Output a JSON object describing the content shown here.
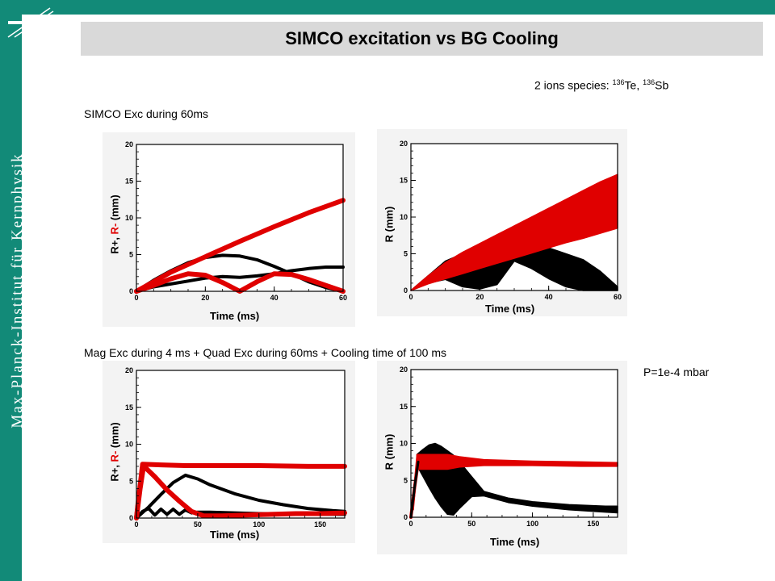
{
  "slide": {
    "title": "SIMCO excitation vs BG Cooling",
    "sidebar_text": "Max-Planck-Institut für Kernphysik",
    "species_prefix": "2 ions species: ",
    "species_sup1": "136",
    "species_el1": "Te",
    "species_sep": ", ",
    "species_sup2": "136",
    "species_el2": "Sb",
    "section1": "SIMCO Exc during 60ms",
    "section2": "Mag Exc during 4 ms + Quad Exc during 60ms + Cooling time of 100 ms",
    "pressure": "P=1e-4 mbar",
    "logo": "max-planck-logo"
  },
  "colors": {
    "accent": "#128a78",
    "series_black": "#000000",
    "series_red": "#e00000",
    "titlebar": "#d9d9d9"
  },
  "chart_data": [
    {
      "type": "line",
      "xlabel": "Time (ms)",
      "ylabel_parts": [
        "R+, ",
        "R-",
        " (mm)"
      ],
      "xlim": [
        0,
        60
      ],
      "ylim": [
        0,
        20
      ],
      "xticks": [
        0,
        20,
        40,
        60
      ],
      "yticks": [
        0,
        5,
        10,
        15,
        20
      ],
      "series": [
        {
          "color": "#000000",
          "width": 4,
          "x": [
            0,
            5,
            10,
            15,
            20,
            25,
            30,
            35,
            40,
            45,
            50,
            55,
            60
          ],
          "y": [
            0,
            1.5,
            2.8,
            3.9,
            4.6,
            4.9,
            4.8,
            4.3,
            3.4,
            2.4,
            1.3,
            0.5,
            0
          ]
        },
        {
          "color": "#000000",
          "width": 4,
          "x": [
            0,
            5,
            10,
            15,
            20,
            25,
            30,
            35,
            40,
            45,
            50,
            55,
            60
          ],
          "y": [
            0,
            0.6,
            1.0,
            1.4,
            1.8,
            2.0,
            1.9,
            2.1,
            2.4,
            2.8,
            3.1,
            3.3,
            3.3
          ]
        },
        {
          "color": "#e00000",
          "width": 6,
          "x": [
            0,
            10,
            20,
            30,
            40,
            50,
            60
          ],
          "y": [
            0,
            2.6,
            4.7,
            6.8,
            8.8,
            10.7,
            12.4
          ]
        },
        {
          "color": "#e00000",
          "width": 6,
          "x": [
            0,
            5,
            10,
            15,
            20,
            25,
            30,
            35,
            40,
            45,
            50,
            55,
            60
          ],
          "y": [
            0,
            0.8,
            1.7,
            2.4,
            2.2,
            1.2,
            0,
            1.3,
            2.4,
            2.3,
            1.6,
            0.8,
            0
          ]
        }
      ]
    },
    {
      "type": "line",
      "xlabel": "Time (ms)",
      "ylabel_parts": [
        "R (mm)",
        "",
        ""
      ],
      "xlim": [
        0,
        60
      ],
      "ylim": [
        0,
        20
      ],
      "xticks": [
        0,
        20,
        40,
        60
      ],
      "yticks": [
        0,
        5,
        10,
        15,
        20
      ],
      "bands": [
        {
          "color": "#000000",
          "x": [
            0,
            5,
            10,
            15,
            20,
            25,
            30,
            35,
            40,
            45,
            50,
            55,
            60
          ],
          "upper": [
            0,
            2,
            4,
            5,
            5.2,
            4.8,
            4.5,
            5.5,
            5.8,
            5.0,
            4.2,
            2.6,
            0.5
          ],
          "lower": [
            0,
            1.0,
            1.5,
            0.5,
            0.2,
            0.8,
            4.0,
            3.0,
            1.6,
            0.5,
            0,
            0,
            0
          ]
        },
        {
          "color": "#e00000",
          "x": [
            0,
            5,
            10,
            15,
            20,
            25,
            30,
            35,
            40,
            45,
            50,
            55,
            60
          ],
          "upper": [
            0,
            2.0,
            3.8,
            5.2,
            6.4,
            7.6,
            8.8,
            10,
            11.2,
            12.4,
            13.6,
            14.8,
            15.8
          ],
          "lower": [
            0,
            0.9,
            1.6,
            2.3,
            3.0,
            3.7,
            4.4,
            5.1,
            5.8,
            6.5,
            7.1,
            7.8,
            8.5
          ]
        }
      ]
    },
    {
      "type": "line",
      "xlabel": "Time (ms)",
      "ylabel_parts": [
        "R+, ",
        "R-",
        " (mm)"
      ],
      "xlim": [
        0,
        170
      ],
      "ylim": [
        0,
        20
      ],
      "xticks": [
        0,
        50,
        100,
        150
      ],
      "yticks": [
        0,
        5,
        10,
        15,
        20
      ],
      "series": [
        {
          "color": "#000000",
          "width": 4,
          "x": [
            0,
            10,
            20,
            30,
            40,
            50,
            60,
            80,
            100,
            120,
            140,
            160,
            170
          ],
          "y": [
            0,
            1.5,
            3.2,
            4.8,
            5.8,
            5.3,
            4.5,
            3.3,
            2.4,
            1.8,
            1.3,
            1.0,
            0.9
          ]
        },
        {
          "color": "#000000",
          "width": 4,
          "x": [
            0,
            5,
            10,
            15,
            20,
            25,
            30,
            35,
            40,
            45,
            50,
            60,
            80,
            100,
            130,
            170
          ],
          "y": [
            0,
            0.9,
            1.3,
            0.4,
            1.2,
            0.5,
            1.2,
            0.5,
            1.1,
            0.7,
            0.8,
            0.8,
            0.7,
            0.6,
            0.5,
            0.5
          ]
        },
        {
          "color": "#e00000",
          "width": 6,
          "x": [
            0,
            2,
            5,
            20,
            40,
            60,
            100,
            140,
            170
          ],
          "y": [
            0,
            3,
            7.3,
            7.2,
            7.1,
            7.1,
            7.1,
            7.0,
            7.0
          ]
        },
        {
          "color": "#e00000",
          "width": 6,
          "x": [
            5,
            15,
            25,
            35,
            45,
            55,
            70,
            90,
            110,
            130,
            150,
            170
          ],
          "y": [
            7.2,
            5.6,
            3.8,
            2.3,
            0.9,
            0.3,
            0.3,
            0.4,
            0.5,
            0.6,
            0.6,
            0.7
          ]
        },
        {
          "color": "#e00000",
          "width": 6,
          "x": [
            0,
            3,
            6
          ],
          "y": [
            0,
            4,
            7.2
          ]
        }
      ]
    },
    {
      "type": "line",
      "xlabel": "Time (ms)",
      "ylabel_parts": [
        "R (mm)",
        "",
        ""
      ],
      "xlim": [
        0,
        170
      ],
      "ylim": [
        0,
        20
      ],
      "xticks": [
        0,
        50,
        100,
        150
      ],
      "yticks": [
        0,
        5,
        10,
        15,
        20
      ],
      "bands": [
        {
          "color": "#000000",
          "x": [
            5,
            10,
            15,
            20,
            25,
            30,
            35,
            40,
            50,
            60,
            80,
            100,
            130,
            160,
            170
          ],
          "upper": [
            8.5,
            9.2,
            9.8,
            10,
            9.6,
            9.0,
            8.4,
            7.5,
            5.5,
            3.5,
            2.6,
            2.1,
            1.7,
            1.5,
            1.5
          ],
          "lower": [
            7.0,
            5.5,
            4.0,
            2.6,
            1.4,
            0.4,
            0.3,
            1.2,
            2.8,
            2.9,
            2.0,
            1.5,
            1.0,
            0.7,
            0.6
          ]
        },
        {
          "color": "#e00000",
          "x": [
            2,
            5,
            10,
            20,
            30,
            40,
            60,
            100,
            140,
            170
          ],
          "upper": [
            3,
            8.5,
            8.5,
            8.5,
            8.5,
            8.2,
            7.8,
            7.6,
            7.5,
            7.4
          ],
          "lower": [
            1,
            6.5,
            6.5,
            6.5,
            6.5,
            6.8,
            7.0,
            7.0,
            6.9,
            6.9
          ]
        }
      ],
      "series": [
        {
          "color": "#e00000",
          "width": 4,
          "x": [
            0,
            3,
            6
          ],
          "y": [
            0,
            4,
            7.5
          ]
        },
        {
          "color": "#000000",
          "width": 3,
          "x": [
            0,
            3,
            6
          ],
          "y": [
            0,
            4,
            7.5
          ]
        }
      ]
    }
  ]
}
